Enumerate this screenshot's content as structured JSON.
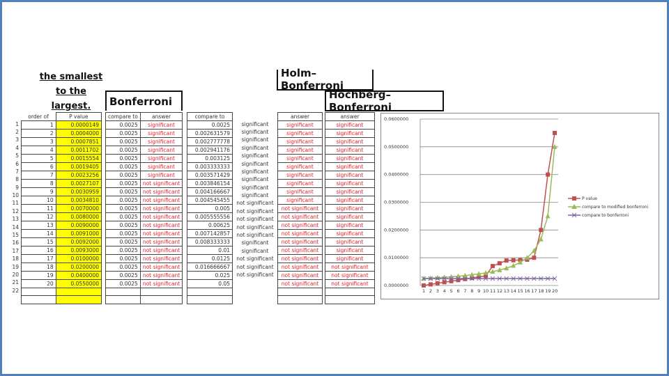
{
  "headings": {
    "sort_note": [
      "the smallest",
      "to the",
      "largest."
    ],
    "bonferroni": "Bonferroni",
    "holm": "Holm–Bonferroni",
    "hochberg": "Hochberg–Bonferroni"
  },
  "table": {
    "headers": {
      "order": "order of",
      "p_value": "P value",
      "bonf_compare": "compare to",
      "bonf_answer": "answer",
      "mod_compare": "compare to",
      "holm_answer": "answer",
      "hochberg_answer": "answer"
    },
    "rows": [
      {
        "row": "1",
        "order": "1",
        "p": "0.0000149",
        "bc": "0.0025",
        "ba": "significant",
        "mc": "0.0025",
        "mr": "significant",
        "holm": "significant",
        "hoch": "significant"
      },
      {
        "row": "2",
        "order": "2",
        "p": "0.0004000",
        "bc": "0.0025",
        "ba": "significant",
        "mc": "0.002631579",
        "mr": "significant",
        "holm": "significant",
        "hoch": "significant"
      },
      {
        "row": "3",
        "order": "3",
        "p": "0.0007851",
        "bc": "0.0025",
        "ba": "significant",
        "mc": "0.002777778",
        "mr": "significant",
        "holm": "significant",
        "hoch": "significant"
      },
      {
        "row": "4",
        "order": "4",
        "p": "0.0011702",
        "bc": "0.0025",
        "ba": "significant",
        "mc": "0.002941176",
        "mr": "significant",
        "holm": "significant",
        "hoch": "significant"
      },
      {
        "row": "5",
        "order": "5",
        "p": "0.0015554",
        "bc": "0.0025",
        "ba": "significant",
        "mc": "0.003125",
        "mr": "significant",
        "holm": "significant",
        "hoch": "significant"
      },
      {
        "row": "6",
        "order": "6",
        "p": "0.0019405",
        "bc": "0.0025",
        "ba": "significant",
        "mc": "0.003333333",
        "mr": "significant",
        "holm": "significant",
        "hoch": "significant"
      },
      {
        "row": "7",
        "order": "7",
        "p": "0.0023256",
        "bc": "0.0025",
        "ba": "significant",
        "mc": "0.003571429",
        "mr": "significant",
        "holm": "significant",
        "hoch": "significant"
      },
      {
        "row": "8",
        "order": "8",
        "p": "0.0027107",
        "bc": "0.0025",
        "ba": "not significant",
        "mc": "0.003846154",
        "mr": "significant",
        "holm": "significant",
        "hoch": "significant"
      },
      {
        "row": "9",
        "order": "9",
        "p": "0.0030959",
        "bc": "0.0025",
        "ba": "not significant",
        "mc": "0.004166667",
        "mr": "significant",
        "holm": "significant",
        "hoch": "significant"
      },
      {
        "row": "10",
        "order": "10",
        "p": "0.0034810",
        "bc": "0.0025",
        "ba": "not significant",
        "mc": "0.004545455",
        "mr": "significant",
        "holm": "significant",
        "hoch": "significant"
      },
      {
        "row": "11",
        "order": "11",
        "p": "0.0070000",
        "bc": "0.0025",
        "ba": "not significant",
        "mc": "0.005",
        "mr": "not significant",
        "holm": "not significant",
        "hoch": "significant"
      },
      {
        "row": "12",
        "order": "12",
        "p": "0.0080000",
        "bc": "0.0025",
        "ba": "not significant",
        "mc": "0.005555556",
        "mr": "not significant",
        "holm": "not significant",
        "hoch": "significant"
      },
      {
        "row": "13",
        "order": "13",
        "p": "0.0090000",
        "bc": "0.0025",
        "ba": "not significant",
        "mc": "0.00625",
        "mr": "not significant",
        "holm": "not significant",
        "hoch": "significant"
      },
      {
        "row": "14",
        "order": "14",
        "p": "0.0091000",
        "bc": "0.0025",
        "ba": "not significant",
        "mc": "0.007142857",
        "mr": "not significant",
        "holm": "not significant",
        "hoch": "significant"
      },
      {
        "row": "15",
        "order": "15",
        "p": "0.0092000",
        "bc": "0.0025",
        "ba": "not significant",
        "mc": "0.008333333",
        "mr": "not significant",
        "holm": "not significant",
        "hoch": "significant"
      },
      {
        "row": "16",
        "order": "16",
        "p": "0.0093000",
        "bc": "0.0025",
        "ba": "not significant",
        "mc": "0.01",
        "mr": "significant",
        "holm": "not significant",
        "hoch": "significant"
      },
      {
        "row": "17",
        "order": "17",
        "p": "0.0100000",
        "bc": "0.0025",
        "ba": "not significant",
        "mc": "0.0125",
        "mr": "significant",
        "holm": "not significant",
        "hoch": "significant"
      },
      {
        "row": "18",
        "order": "18",
        "p": "0.0200000",
        "bc": "0.0025",
        "ba": "not significant",
        "mc": "0.016666667",
        "mr": "not significant",
        "holm": "not significant",
        "hoch": "not significant"
      },
      {
        "row": "19",
        "order": "19",
        "p": "0.0400000",
        "bc": "0.0025",
        "ba": "not significant",
        "mc": "0.025",
        "mr": "not significant",
        "holm": "not significant",
        "hoch": "not significant"
      },
      {
        "row": "20",
        "order": "20",
        "p": "0.0550000",
        "bc": "0.0025",
        "ba": "not significant",
        "mc": "0.05",
        "mr": "not significant",
        "holm": "not significant",
        "hoch": "not significant"
      },
      {
        "row": "21",
        "order": "",
        "p": "",
        "bc": "",
        "ba": "",
        "mc": "",
        "mr": "",
        "holm": "",
        "hoch": ""
      },
      {
        "row": "22",
        "order": "",
        "p": "",
        "bc": "",
        "ba": "",
        "mc": "",
        "mr": "",
        "holm": "",
        "hoch": ""
      }
    ]
  },
  "colors": {
    "highlight": "#ffff00",
    "answer_text": "#e8202a",
    "p_value_series": "#c0504d",
    "modified_series": "#9bbb59",
    "bonferroni_series": "#8064a2",
    "slide_border": "#4f81bd"
  },
  "chart_data": {
    "type": "line",
    "title": "",
    "xlabel": "",
    "ylabel": "",
    "x": [
      1,
      2,
      3,
      4,
      5,
      6,
      7,
      8,
      9,
      10,
      11,
      12,
      13,
      14,
      15,
      16,
      17,
      18,
      19,
      20
    ],
    "ylim": [
      0,
      0.06
    ],
    "yticks": [
      "0.0000000",
      "0.0100000",
      "0.0200000",
      "0.0300000",
      "0.0400000",
      "0.0500000",
      "0.0600000"
    ],
    "grid": true,
    "legend_position": "right",
    "series": [
      {
        "name": "P value",
        "marker": "square",
        "color": "#c0504d",
        "values": [
          1.49e-05,
          0.0004,
          0.0007851,
          0.0011702,
          0.0015554,
          0.0019405,
          0.0023256,
          0.0027107,
          0.0030959,
          0.003481,
          0.007,
          0.008,
          0.009,
          0.0091,
          0.0092,
          0.0093,
          0.01,
          0.02,
          0.04,
          0.055
        ]
      },
      {
        "name": "compare to modified bonferroni",
        "marker": "triangle",
        "color": "#9bbb59",
        "values": [
          0.0025,
          0.002631579,
          0.002777778,
          0.002941176,
          0.003125,
          0.003333333,
          0.003571429,
          0.003846154,
          0.004166667,
          0.004545455,
          0.005,
          0.005555556,
          0.00625,
          0.007142857,
          0.008333333,
          0.01,
          0.0125,
          0.016666667,
          0.025,
          0.05
        ]
      },
      {
        "name": "compare to bonferroni",
        "marker": "x",
        "color": "#8064a2",
        "values": [
          0.0025,
          0.0025,
          0.0025,
          0.0025,
          0.0025,
          0.0025,
          0.0025,
          0.0025,
          0.0025,
          0.0025,
          0.0025,
          0.0025,
          0.0025,
          0.0025,
          0.0025,
          0.0025,
          0.0025,
          0.0025,
          0.0025,
          0.0025
        ]
      }
    ]
  }
}
